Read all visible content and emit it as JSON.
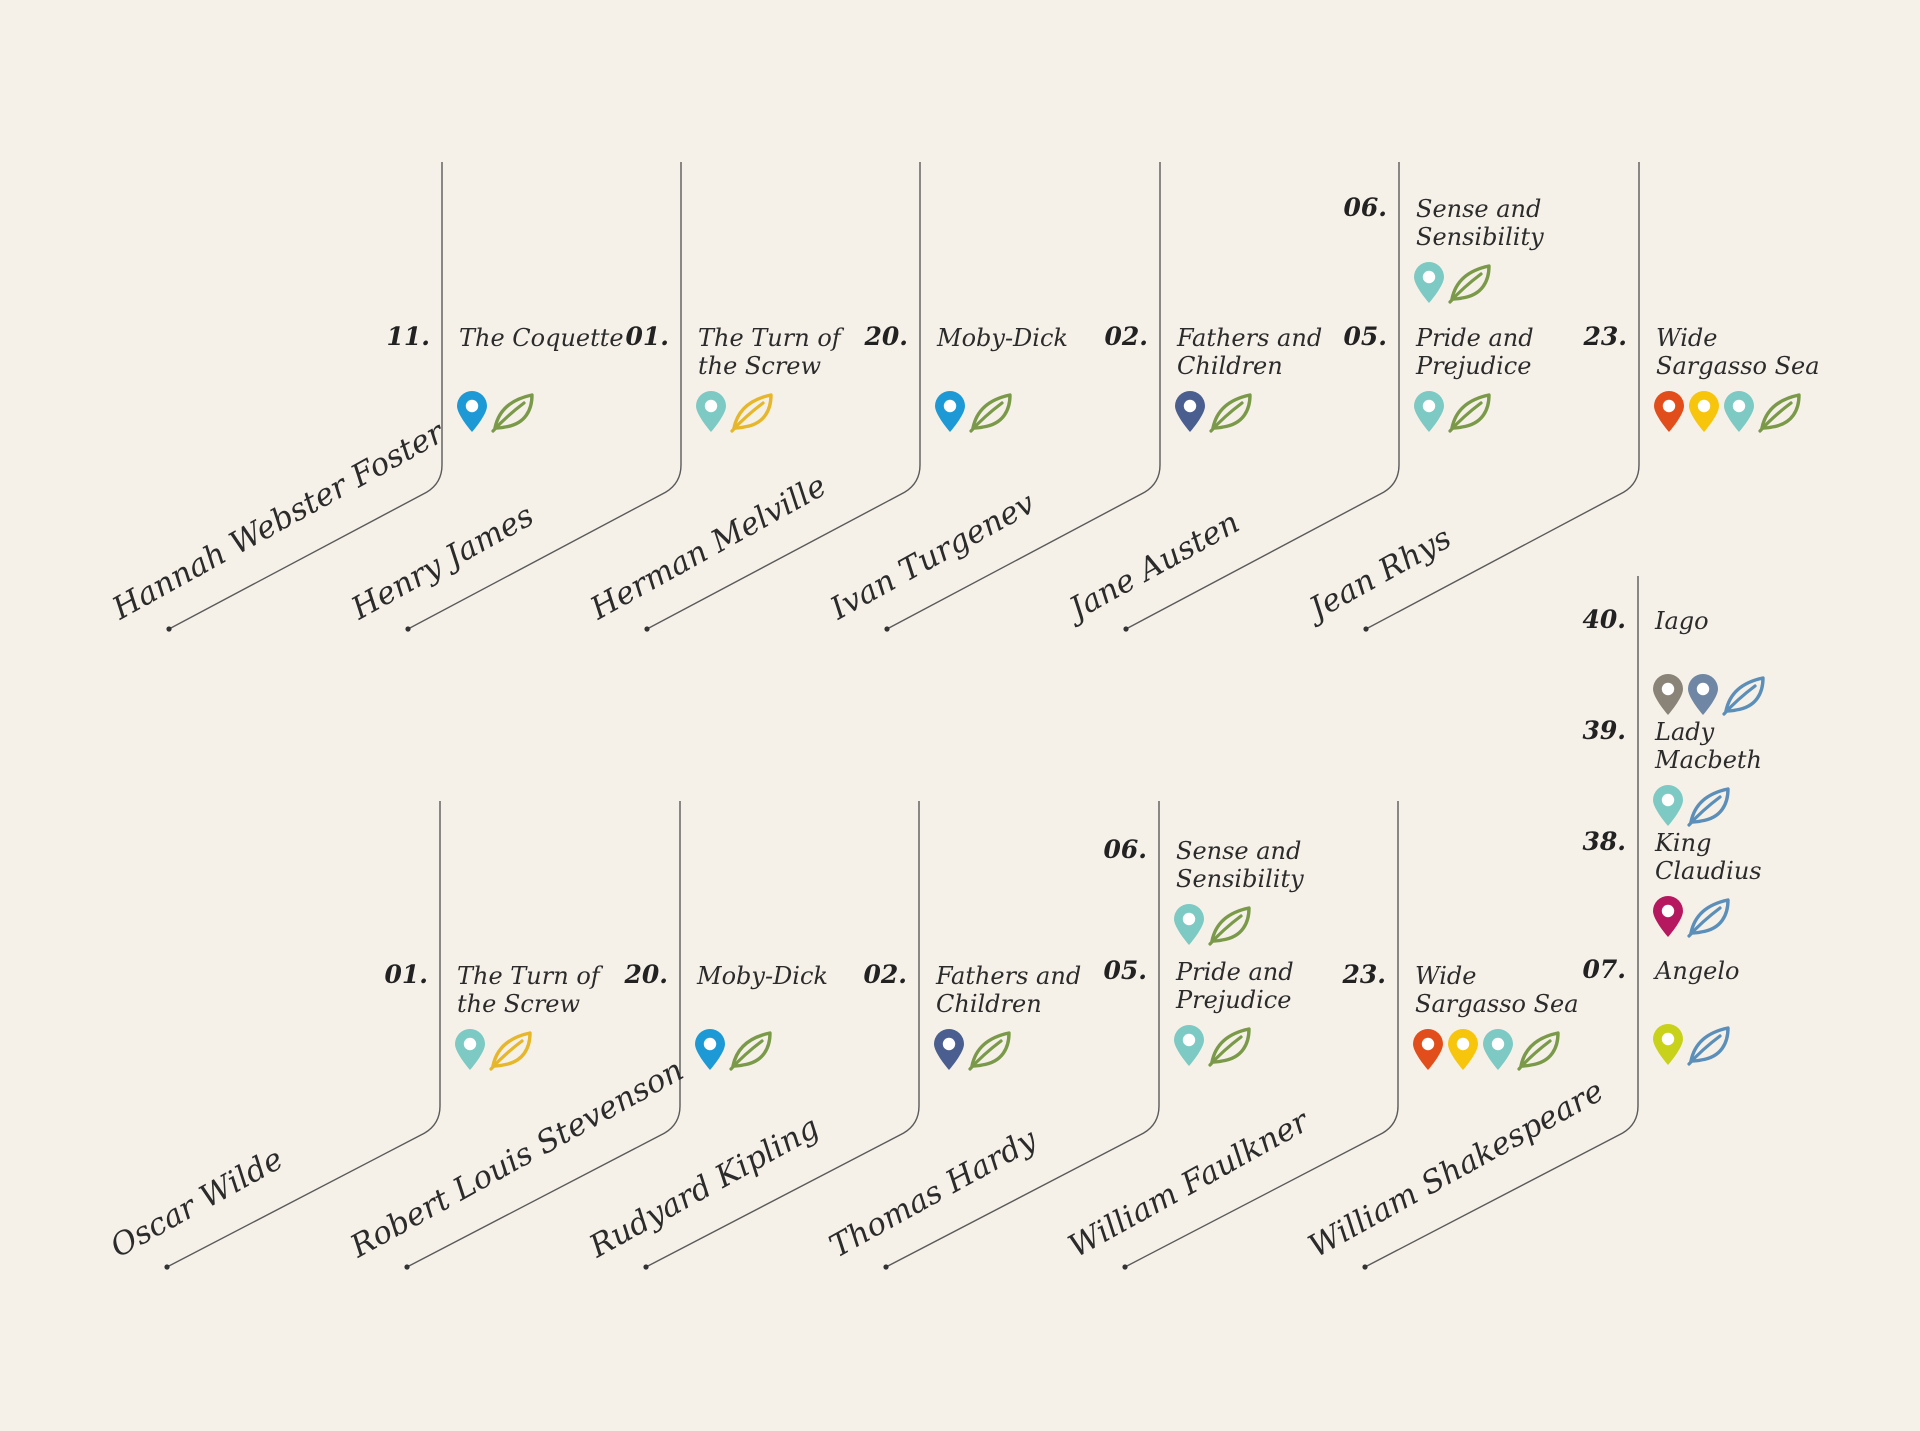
{
  "colors": {
    "background": "#f6f1e8",
    "line": "#5a5a5a",
    "pin_blue": "#1d9ad6",
    "pin_teal": "#7dc9c3",
    "pin_navy": "#4a5e8f",
    "pin_red": "#e24e1b",
    "pin_yellow": "#f7c50b",
    "pin_grey": "#8a8478",
    "pin_slate": "#6f86a4",
    "pin_magenta": "#b6185f",
    "pin_lime": "#c9d21b",
    "leaf_green": "#7a9a4a",
    "leaf_gold": "#e6b62b",
    "leaf_blue": "#5b8fb9"
  },
  "authors": [
    {
      "name": "Hannah Webster Foster",
      "works": [
        {
          "number": "11.",
          "title": "The Coquette",
          "icons": [
            "pin_blue",
            "leaf_green"
          ]
        }
      ]
    },
    {
      "name": "Henry James",
      "works": [
        {
          "number": "01.",
          "title": "The Turn of the Screw",
          "icons": [
            "pin_teal",
            "leaf_gold"
          ]
        }
      ]
    },
    {
      "name": "Herman Melville",
      "works": [
        {
          "number": "20.",
          "title": "Moby-Dick",
          "icons": [
            "pin_blue",
            "leaf_green"
          ]
        }
      ]
    },
    {
      "name": "Ivan Turgenev",
      "works": [
        {
          "number": "02.",
          "title": "Fathers and Children",
          "icons": [
            "pin_navy",
            "leaf_green"
          ]
        }
      ]
    },
    {
      "name": "Jane Austen",
      "works": [
        {
          "number": "06.",
          "title": "Sense and Sensibility",
          "icons": [
            "pin_teal",
            "leaf_green"
          ]
        },
        {
          "number": "05.",
          "title": "Pride and Prejudice",
          "icons": [
            "pin_teal",
            "leaf_green"
          ]
        }
      ]
    },
    {
      "name": "Jean Rhys",
      "works": [
        {
          "number": "23.",
          "title": "Wide Sargasso Sea",
          "icons": [
            "pin_red",
            "pin_yellow",
            "pin_teal",
            "leaf_green"
          ]
        }
      ]
    },
    {
      "name": "Oscar Wilde",
      "works": [
        {
          "number": "01.",
          "title": "The Turn of the Screw",
          "icons": [
            "pin_teal",
            "leaf_gold"
          ]
        }
      ]
    },
    {
      "name": "Robert Louis Stevenson",
      "works": [
        {
          "number": "20.",
          "title": "Moby-Dick",
          "icons": [
            "pin_blue",
            "leaf_green"
          ]
        }
      ]
    },
    {
      "name": "Rudyard Kipling",
      "works": [
        {
          "number": "02.",
          "title": "Fathers and Children",
          "icons": [
            "pin_navy",
            "leaf_green"
          ]
        }
      ]
    },
    {
      "name": "Thomas Hardy",
      "works": [
        {
          "number": "06.",
          "title": "Sense and Sensibility",
          "icons": [
            "pin_teal",
            "leaf_green"
          ]
        },
        {
          "number": "05.",
          "title": "Pride and Prejudice",
          "icons": [
            "pin_teal",
            "leaf_green"
          ]
        }
      ]
    },
    {
      "name": "William Faulkner",
      "works": [
        {
          "number": "23.",
          "title": "Wide Sargasso Sea",
          "icons": [
            "pin_red",
            "pin_yellow",
            "pin_teal",
            "leaf_green"
          ]
        }
      ]
    },
    {
      "name": "William Shakespeare",
      "works": [
        {
          "number": "40.",
          "title": "Iago",
          "icons": [
            "pin_grey",
            "pin_slate",
            "leaf_blue"
          ]
        },
        {
          "number": "39.",
          "title": "Lady Macbeth",
          "icons": [
            "pin_teal",
            "leaf_blue"
          ]
        },
        {
          "number": "38.",
          "title": "King Claudius",
          "icons": [
            "pin_magenta",
            "leaf_blue"
          ]
        },
        {
          "number": "07.",
          "title": "Angelo",
          "icons": [
            "pin_lime",
            "leaf_blue"
          ]
        }
      ]
    }
  ]
}
